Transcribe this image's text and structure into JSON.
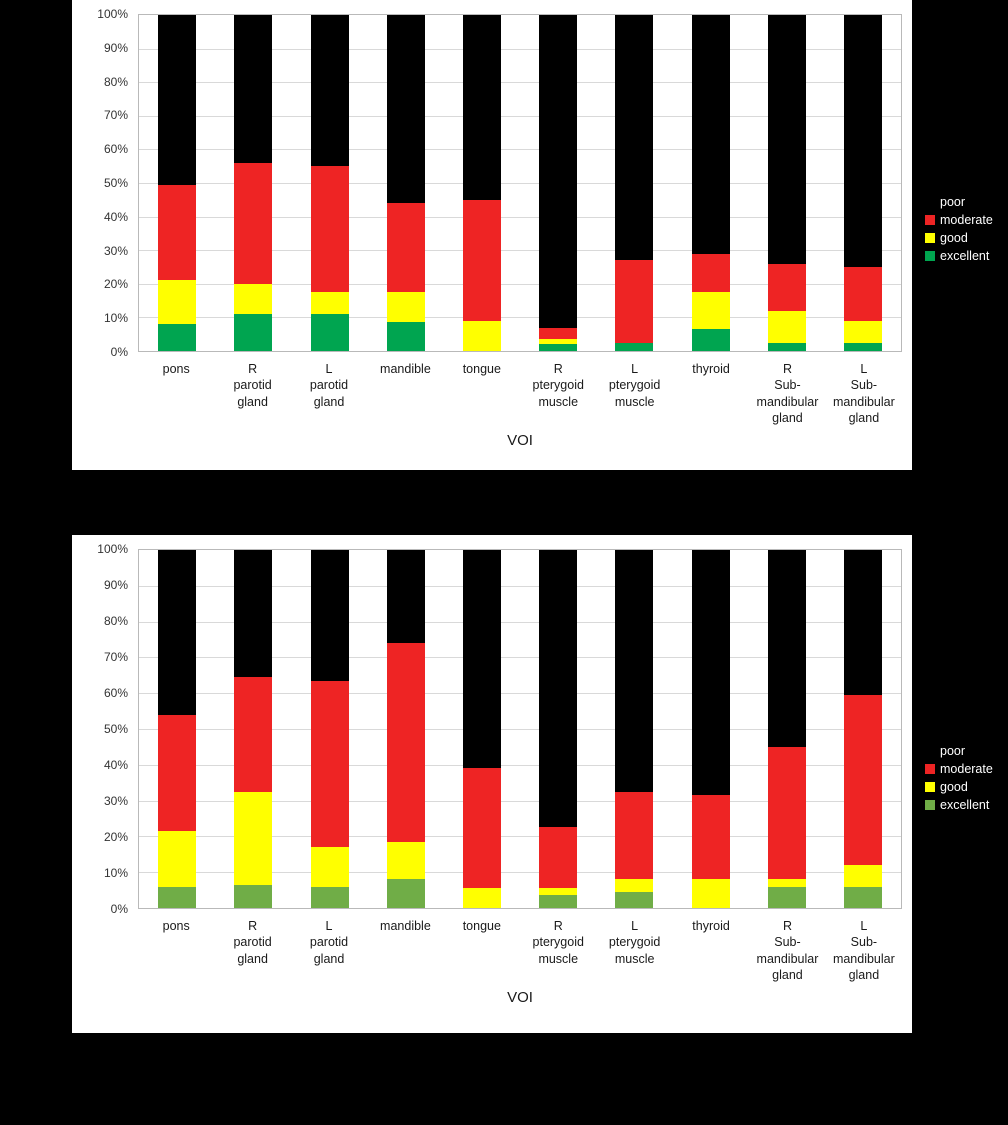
{
  "page": {
    "background": "#000000",
    "panel_background": "#ffffff"
  },
  "chart_data": [
    {
      "type": "bar",
      "subtype": "100%-stacked-column",
      "xlabel": "VOI",
      "ylim": [
        0,
        100
      ],
      "grid": true,
      "legend_position": "right",
      "y_ticks": [
        "100%",
        "90%",
        "80%",
        "70%",
        "60%",
        "50%",
        "40%",
        "30%",
        "20%",
        "10%",
        "0%"
      ],
      "categories": [
        "pons",
        "R\nparotid\ngland",
        "L\nparotid\ngland",
        "mandible",
        "tongue",
        "R\npterygoid\nmuscle",
        "L\npterygoid\nmuscle",
        "thyroid",
        "R\nSub-\nmandibular\ngland",
        "L\nSub-\nmandibular\ngland"
      ],
      "series": [
        {
          "name": "poor",
          "color": "#000000",
          "values": [
            50.5,
            44,
            45,
            56,
            55,
            93,
            73,
            71,
            74,
            75
          ]
        },
        {
          "name": "moderate",
          "color": "#ee2424",
          "values": [
            28.5,
            36,
            37.5,
            26.5,
            36,
            3.5,
            24.5,
            11.5,
            14,
            16
          ]
        },
        {
          "name": "good",
          "color": "#ffff00",
          "values": [
            13,
            9,
            6.5,
            9,
            9,
            1.5,
            0,
            11,
            9.5,
            6.5
          ]
        },
        {
          "name": "excellent",
          "color": "#00a550",
          "values": [
            8,
            11,
            11,
            8.5,
            0,
            2,
            2.5,
            6.5,
            2.5,
            2.5
          ]
        }
      ]
    },
    {
      "type": "bar",
      "subtype": "100%-stacked-column",
      "xlabel": "VOI",
      "ylim": [
        0,
        100
      ],
      "grid": true,
      "legend_position": "right",
      "y_ticks": [
        "100%",
        "90%",
        "80%",
        "70%",
        "60%",
        "50%",
        "40%",
        "30%",
        "20%",
        "10%",
        "0%"
      ],
      "categories": [
        "pons",
        "R\nparotid\ngland",
        "L\nparotid\ngland",
        "mandible",
        "tongue",
        "R\npterygoid\nmuscle",
        "L\npterygoid\nmuscle",
        "thyroid",
        "R\nSub-\nmandibular\ngland",
        "L\nSub-\nmandibular\ngland"
      ],
      "series": [
        {
          "name": "poor",
          "color": "#000000",
          "values": [
            46,
            35.5,
            36.5,
            26,
            61,
            77.5,
            67.5,
            68.5,
            55,
            40.5
          ]
        },
        {
          "name": "moderate",
          "color": "#ee2424",
          "values": [
            32.5,
            32,
            46.5,
            55.5,
            33.5,
            17,
            24.5,
            23.5,
            37,
            47.5
          ]
        },
        {
          "name": "good",
          "color": "#ffff00",
          "values": [
            15.5,
            26,
            11,
            10.5,
            5.5,
            2,
            3.5,
            8,
            2,
            6
          ]
        },
        {
          "name": "excellent",
          "color": "#70ad47",
          "values": [
            6,
            6.5,
            6,
            8,
            0,
            3.5,
            4.5,
            0,
            6,
            6
          ]
        }
      ]
    }
  ]
}
